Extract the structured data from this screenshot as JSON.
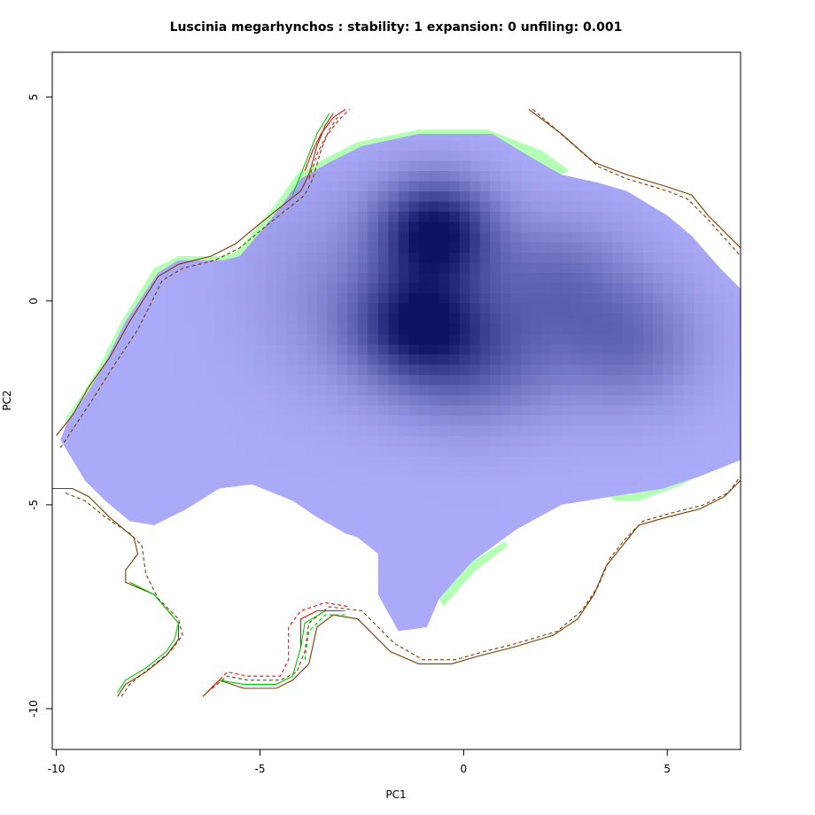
{
  "chart_data": {
    "type": "heatmap",
    "title": "Luscinia megarhynchos : stability: 1 expansion: 0 unfiling: 0.001",
    "xlabel": "PC1",
    "ylabel": "PC2",
    "xlim": [
      -10.1,
      6.8
    ],
    "ylim": [
      -11.0,
      6.1
    ],
    "x_ticks": [
      -10,
      -5,
      0,
      5
    ],
    "y_ticks": [
      5,
      0,
      -5,
      -10
    ],
    "grid": false,
    "legend": "none",
    "colors": {
      "density_light": "#aaaaf8",
      "density_dark": "#0d1463",
      "stability": "#b3ffb3",
      "native_envelope": "#ff0000",
      "invaded_envelope": "#00cc00",
      "overlap_envelope": "#7a3b00"
    },
    "density_region": [
      [
        -2.1,
        -7.2
      ],
      [
        -1.6,
        -8.1
      ],
      [
        -0.9,
        -8.0
      ],
      [
        -0.6,
        -7.3
      ],
      [
        0.2,
        -6.4
      ],
      [
        1.3,
        -5.6
      ],
      [
        2.4,
        -5.0
      ],
      [
        3.6,
        -4.8
      ],
      [
        4.9,
        -4.6
      ],
      [
        5.8,
        -4.3
      ],
      [
        6.8,
        -3.9
      ],
      [
        6.8,
        0.3
      ],
      [
        6.3,
        0.8
      ],
      [
        5.6,
        1.6
      ],
      [
        5.0,
        2.1
      ],
      [
        4.0,
        2.7
      ],
      [
        3.3,
        2.9
      ],
      [
        2.4,
        3.1
      ],
      [
        1.7,
        3.5
      ],
      [
        1.2,
        3.8
      ],
      [
        0.7,
        4.1
      ],
      [
        -1.1,
        4.1
      ],
      [
        -2.5,
        3.8
      ],
      [
        -3.3,
        3.4
      ],
      [
        -4.0,
        3.0
      ],
      [
        -4.5,
        2.3
      ],
      [
        -4.9,
        1.8
      ],
      [
        -5.5,
        1.1
      ],
      [
        -5.9,
        1.0
      ],
      [
        -7.0,
        1.0
      ],
      [
        -7.5,
        0.7
      ],
      [
        -8.3,
        -0.5
      ],
      [
        -8.8,
        -1.5
      ],
      [
        -9.2,
        -2.2
      ],
      [
        -9.7,
        -2.9
      ],
      [
        -9.9,
        -3.4
      ],
      [
        -9.6,
        -3.9
      ],
      [
        -9.3,
        -4.4
      ],
      [
        -8.8,
        -4.9
      ],
      [
        -8.2,
        -5.4
      ],
      [
        -7.6,
        -5.5
      ],
      [
        -6.8,
        -5.1
      ],
      [
        -6.0,
        -4.6
      ],
      [
        -5.2,
        -4.5
      ],
      [
        -4.2,
        -4.9
      ],
      [
        -3.6,
        -5.3
      ],
      [
        -2.9,
        -5.7
      ],
      [
        -2.6,
        -5.8
      ],
      [
        -2.1,
        -6.2
      ]
    ],
    "stability_strip": [
      [
        -1.1,
        4.1
      ],
      [
        0.7,
        4.1
      ],
      [
        1.2,
        3.8
      ],
      [
        1.7,
        3.5
      ],
      [
        2.4,
        3.1
      ],
      [
        2.6,
        3.2
      ],
      [
        1.9,
        3.7
      ],
      [
        1.1,
        4.0
      ],
      [
        0.6,
        4.2
      ],
      [
        -1.1,
        4.2
      ],
      [
        -2.6,
        3.9
      ],
      [
        -3.4,
        3.5
      ],
      [
        -4.1,
        3.1
      ],
      [
        -4.6,
        2.4
      ],
      [
        -5.0,
        1.9
      ],
      [
        -5.6,
        1.2
      ],
      [
        -6.0,
        1.1
      ],
      [
        -7.0,
        1.1
      ],
      [
        -7.6,
        0.8
      ],
      [
        -8.4,
        -0.5
      ],
      [
        -8.9,
        -1.5
      ],
      [
        -9.3,
        -2.2
      ],
      [
        -9.8,
        -2.9
      ],
      [
        -9.7,
        -2.9
      ],
      [
        -9.2,
        -2.2
      ],
      [
        -8.8,
        -1.5
      ],
      [
        -8.3,
        -0.5
      ],
      [
        -7.5,
        0.7
      ],
      [
        -7.0,
        1.0
      ],
      [
        -5.9,
        1.0
      ],
      [
        -5.5,
        1.1
      ],
      [
        -4.9,
        1.8
      ],
      [
        -4.5,
        2.3
      ],
      [
        -4.0,
        3.0
      ],
      [
        -3.3,
        3.4
      ],
      [
        -2.5,
        3.8
      ]
    ],
    "stability_patch_se": [
      [
        3.6,
        -4.8
      ],
      [
        4.9,
        -4.6
      ],
      [
        5.8,
        -4.3
      ],
      [
        6.8,
        -3.9
      ],
      [
        6.8,
        -3.5
      ],
      [
        6.2,
        -4.0
      ],
      [
        5.4,
        -4.5
      ],
      [
        4.3,
        -4.9
      ],
      [
        3.7,
        -4.9
      ]
    ],
    "stability_patch_s": [
      [
        -0.6,
        -7.3
      ],
      [
        0.2,
        -6.4
      ],
      [
        1.0,
        -5.9
      ],
      [
        1.1,
        -6.0
      ],
      [
        0.3,
        -6.6
      ],
      [
        -0.5,
        -7.5
      ]
    ],
    "density_peaks": [
      {
        "x": -0.7,
        "y": 1.7,
        "sx": 1.0,
        "sy": 0.9,
        "w": 1.0
      },
      {
        "x": -1.1,
        "y": -0.5,
        "sx": 1.1,
        "sy": 0.9,
        "w": 0.78
      },
      {
        "x": 0.2,
        "y": -1.5,
        "sx": 1.6,
        "sy": 1.1,
        "w": 0.45
      },
      {
        "x": 2.2,
        "y": 0.5,
        "sx": 1.3,
        "sy": 1.1,
        "w": 0.38
      },
      {
        "x": 4.1,
        "y": -1.0,
        "sx": 1.2,
        "sy": 1.1,
        "w": 0.38
      },
      {
        "x": -3.2,
        "y": 0.3,
        "sx": 1.5,
        "sy": 1.6,
        "w": 0.18
      }
    ],
    "contours": [
      {
        "series": "overlap",
        "dash": false,
        "points": [
          [
            -8.5,
            -9.7
          ],
          [
            -8.3,
            -9.4
          ],
          [
            -7.8,
            -9.1
          ],
          [
            -7.3,
            -8.7
          ],
          [
            -7.0,
            -8.3
          ],
          [
            -7.0,
            -7.9
          ],
          [
            -7.6,
            -7.2
          ],
          [
            -8.3,
            -6.9
          ],
          [
            -8.3,
            -6.6
          ],
          [
            -8.0,
            -6.2
          ],
          [
            -8.1,
            -5.8
          ],
          [
            -8.7,
            -5.3
          ],
          [
            -9.2,
            -4.8
          ],
          [
            -9.6,
            -4.6
          ],
          [
            -10.1,
            -4.6
          ]
        ]
      },
      {
        "series": "invaded",
        "dash": false,
        "points": [
          [
            -8.5,
            -9.6
          ],
          [
            -8.3,
            -9.3
          ],
          [
            -7.8,
            -9.0
          ],
          [
            -7.3,
            -8.6
          ],
          [
            -7.1,
            -8.3
          ],
          [
            -7.0,
            -7.9
          ],
          [
            -7.6,
            -7.2
          ],
          [
            -8.2,
            -6.9
          ]
        ]
      },
      {
        "series": "overlap",
        "dash": true,
        "points": [
          [
            -8.4,
            -9.7
          ],
          [
            -8.2,
            -9.4
          ],
          [
            -7.7,
            -9.0
          ],
          [
            -7.2,
            -8.6
          ],
          [
            -6.9,
            -8.2
          ],
          [
            -7.0,
            -7.8
          ],
          [
            -7.5,
            -7.3
          ],
          [
            -7.8,
            -6.7
          ],
          [
            -7.9,
            -6.0
          ],
          [
            -8.2,
            -5.7
          ],
          [
            -8.8,
            -5.3
          ],
          [
            -9.3,
            -4.9
          ],
          [
            -9.8,
            -4.7
          ]
        ]
      },
      {
        "series": "overlap",
        "dash": false,
        "points": [
          [
            -10.0,
            -3.3
          ],
          [
            -9.6,
            -2.8
          ],
          [
            -9.2,
            -2.1
          ],
          [
            -8.7,
            -1.4
          ],
          [
            -8.2,
            -0.5
          ],
          [
            -7.5,
            0.6
          ],
          [
            -7.0,
            0.9
          ],
          [
            -6.2,
            1.1
          ],
          [
            -5.6,
            1.4
          ],
          [
            -5.0,
            1.9
          ],
          [
            -4.5,
            2.3
          ],
          [
            -4.0,
            2.7
          ],
          [
            -3.8,
            3.1
          ],
          [
            -3.6,
            3.8
          ],
          [
            -3.4,
            4.3
          ],
          [
            -3.2,
            4.6
          ]
        ]
      },
      {
        "series": "overlap",
        "dash": true,
        "points": [
          [
            -9.9,
            -3.6
          ],
          [
            -9.5,
            -3.0
          ],
          [
            -9.1,
            -2.4
          ],
          [
            -8.6,
            -1.6
          ],
          [
            -8.0,
            -0.7
          ],
          [
            -7.4,
            0.5
          ],
          [
            -6.9,
            0.8
          ],
          [
            -6.1,
            1.0
          ],
          [
            -5.5,
            1.3
          ],
          [
            -4.9,
            1.8
          ],
          [
            -4.4,
            2.2
          ],
          [
            -3.9,
            2.6
          ],
          [
            -3.7,
            3.0
          ],
          [
            -3.5,
            3.7
          ],
          [
            -3.3,
            4.2
          ],
          [
            -3.1,
            4.5
          ]
        ]
      },
      {
        "series": "invaded",
        "dash": false,
        "points": [
          [
            -4.2,
            2.6
          ],
          [
            -4.0,
            3.1
          ],
          [
            -3.8,
            3.6
          ],
          [
            -3.6,
            4.1
          ],
          [
            -3.3,
            4.6
          ]
        ]
      },
      {
        "series": "native",
        "dash": false,
        "points": [
          [
            -3.9,
            3.2
          ],
          [
            -3.7,
            3.7
          ],
          [
            -3.5,
            4.1
          ],
          [
            -3.2,
            4.5
          ],
          [
            -2.9,
            4.7
          ]
        ]
      },
      {
        "series": "native",
        "dash": true,
        "points": [
          [
            -3.8,
            3.0
          ],
          [
            -3.6,
            3.6
          ],
          [
            -3.4,
            4.0
          ],
          [
            -3.1,
            4.4
          ],
          [
            -2.8,
            4.7
          ]
        ]
      },
      {
        "series": "overlap",
        "dash": false,
        "points": [
          [
            1.6,
            4.7
          ],
          [
            2.4,
            4.1
          ],
          [
            3.2,
            3.4
          ],
          [
            4.0,
            3.1
          ],
          [
            5.0,
            2.8
          ],
          [
            5.6,
            2.6
          ],
          [
            6.0,
            2.1
          ],
          [
            6.8,
            1.3
          ]
        ]
      },
      {
        "series": "overlap",
        "dash": true,
        "points": [
          [
            1.7,
            4.7
          ],
          [
            2.5,
            4.0
          ],
          [
            3.3,
            3.3
          ],
          [
            4.0,
            3.0
          ],
          [
            5.0,
            2.7
          ],
          [
            5.5,
            2.5
          ],
          [
            6.0,
            2.0
          ],
          [
            6.8,
            1.1
          ]
        ]
      },
      {
        "series": "overlap",
        "dash": false,
        "points": [
          [
            -6.4,
            -9.7
          ],
          [
            -6.0,
            -9.3
          ],
          [
            -5.4,
            -9.5
          ],
          [
            -4.6,
            -9.5
          ],
          [
            -4.2,
            -9.3
          ],
          [
            -3.8,
            -8.9
          ],
          [
            -3.6,
            -8.0
          ],
          [
            -3.2,
            -7.7
          ],
          [
            -2.6,
            -7.8
          ],
          [
            -1.8,
            -8.6
          ],
          [
            -1.1,
            -8.9
          ],
          [
            -0.3,
            -8.9
          ],
          [
            0.4,
            -8.7
          ],
          [
            1.2,
            -8.5
          ],
          [
            2.2,
            -8.2
          ],
          [
            2.8,
            -7.8
          ],
          [
            3.2,
            -7.2
          ],
          [
            3.5,
            -6.5
          ],
          [
            3.9,
            -6.0
          ],
          [
            4.3,
            -5.5
          ],
          [
            5.0,
            -5.3
          ],
          [
            5.8,
            -5.1
          ],
          [
            6.4,
            -4.8
          ],
          [
            6.8,
            -4.4
          ]
        ]
      },
      {
        "series": "overlap",
        "dash": true,
        "points": [
          [
            -6.3,
            -9.6
          ],
          [
            -5.8,
            -9.2
          ],
          [
            -5.3,
            -9.3
          ],
          [
            -4.5,
            -9.3
          ],
          [
            -4.1,
            -9.1
          ],
          [
            -3.9,
            -8.6
          ],
          [
            -3.8,
            -7.9
          ],
          [
            -3.3,
            -7.5
          ],
          [
            -2.5,
            -7.6
          ],
          [
            -1.7,
            -8.4
          ],
          [
            -1.0,
            -8.8
          ],
          [
            -0.2,
            -8.8
          ],
          [
            0.5,
            -8.6
          ],
          [
            1.3,
            -8.4
          ],
          [
            2.3,
            -8.1
          ],
          [
            2.9,
            -7.6
          ],
          [
            3.3,
            -7.0
          ],
          [
            3.6,
            -6.3
          ],
          [
            4.0,
            -5.8
          ],
          [
            4.4,
            -5.4
          ],
          [
            5.1,
            -5.2
          ],
          [
            5.9,
            -5.0
          ],
          [
            6.5,
            -4.7
          ],
          [
            6.8,
            -4.3
          ]
        ]
      },
      {
        "series": "invaded",
        "dash": false,
        "points": [
          [
            -6.0,
            -9.3
          ],
          [
            -5.4,
            -9.4
          ],
          [
            -4.6,
            -9.4
          ],
          [
            -4.2,
            -9.2
          ],
          [
            -4.0,
            -8.5
          ],
          [
            -3.9,
            -7.9
          ],
          [
            -3.4,
            -7.6
          ],
          [
            -2.9,
            -7.6
          ]
        ]
      },
      {
        "series": "native",
        "dash": false,
        "points": [
          [
            -4.0,
            -8.5
          ],
          [
            -4.0,
            -7.8
          ],
          [
            -3.6,
            -7.6
          ],
          [
            -3.0,
            -7.6
          ]
        ]
      },
      {
        "series": "native",
        "dash": true,
        "points": [
          [
            -6.2,
            -9.5
          ],
          [
            -5.8,
            -9.1
          ],
          [
            -5.3,
            -9.2
          ],
          [
            -4.5,
            -9.2
          ],
          [
            -4.3,
            -8.8
          ],
          [
            -4.3,
            -8.0
          ],
          [
            -4.0,
            -7.6
          ],
          [
            -3.4,
            -7.4
          ],
          [
            -2.8,
            -7.5
          ]
        ]
      },
      {
        "series": "invaded",
        "dash": true,
        "points": [
          [
            -3.9,
            -8.8
          ],
          [
            -3.8,
            -8.1
          ],
          [
            -3.4,
            -7.7
          ],
          [
            -2.9,
            -7.7
          ]
        ]
      }
    ]
  }
}
